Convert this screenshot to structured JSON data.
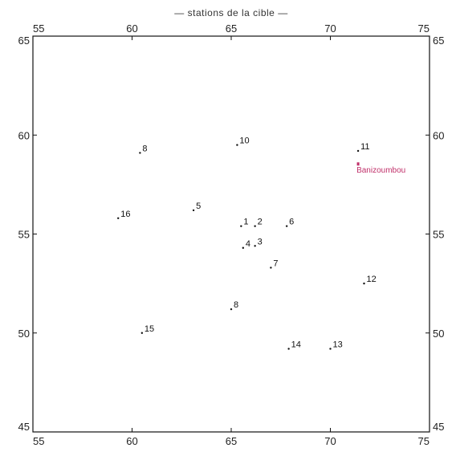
{
  "chart_data": {
    "type": "scatter",
    "title": "— stations de la cible —",
    "xlim": [
      55,
      75
    ],
    "ylim": [
      45,
      65
    ],
    "xticks": [
      "55",
      "60",
      "65",
      "70",
      "75"
    ],
    "yticks": [
      "45",
      "50",
      "55",
      "60",
      "65"
    ],
    "grid": false,
    "points": [
      {
        "label": "1",
        "x": 65.5,
        "y": 55.4
      },
      {
        "label": "2",
        "x": 66.2,
        "y": 55.4
      },
      {
        "label": "3",
        "x": 66.2,
        "y": 54.4
      },
      {
        "label": "4",
        "x": 65.6,
        "y": 54.3
      },
      {
        "label": "5",
        "x": 63.1,
        "y": 56.2
      },
      {
        "label": "6",
        "x": 67.8,
        "y": 55.4
      },
      {
        "label": "7",
        "x": 67.0,
        "y": 53.3
      },
      {
        "label": "8",
        "x": 65.0,
        "y": 51.2
      },
      {
        "label": "8",
        "x": 60.4,
        "y": 59.1
      },
      {
        "label": "10",
        "x": 65.3,
        "y": 59.5
      },
      {
        "label": "11",
        "x": 71.4,
        "y": 59.2
      },
      {
        "label": "12",
        "x": 71.7,
        "y": 52.5
      },
      {
        "label": "13",
        "x": 70.0,
        "y": 49.2
      },
      {
        "label": "14",
        "x": 67.9,
        "y": 49.2
      },
      {
        "label": "15",
        "x": 60.5,
        "y": 50.0
      },
      {
        "label": "16",
        "x": 59.3,
        "y": 55.8
      }
    ],
    "highlight": {
      "label": "Banizoumbou",
      "x": 71.4,
      "y": 58.5,
      "color": "#c0306a"
    }
  }
}
